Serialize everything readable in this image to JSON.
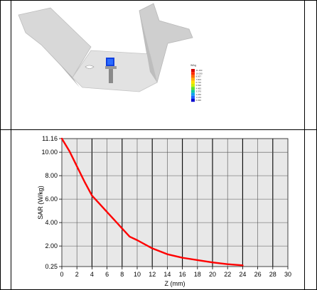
{
  "top_image": {
    "legend": {
      "title": "W/kg",
      "values": [
        "11.160",
        "10.050",
        "8.937",
        "7.823",
        "6.710",
        "5.596",
        "4.483",
        "3.370",
        "2.256",
        "1.143",
        "0.030"
      ],
      "colors": [
        "#d40000",
        "#ff2a00",
        "#ff6a00",
        "#ffb000",
        "#ffe000",
        "#c8f000",
        "#60e030",
        "#10c8a0",
        "#10a0f0",
        "#2060ff",
        "#0000d0"
      ]
    },
    "colors": {
      "phantom": "#d6d6d6",
      "phantom_shadow": "#a8a8a8",
      "probe": "#1040e0",
      "holder": "#8a8a8a"
    }
  },
  "chart_data": {
    "type": "line",
    "title": "",
    "xlabel": "Z (mm)",
    "ylabel": "SAR (W/kg)",
    "xlim": [
      0,
      30
    ],
    "ylim": [
      0.25,
      11.16
    ],
    "x_ticks": [
      "0",
      "2",
      "4",
      "6",
      "8",
      "10",
      "12",
      "14",
      "16",
      "18",
      "20",
      "22",
      "24",
      "26",
      "28",
      "30"
    ],
    "y_ticks": [
      {
        "label": "11.16",
        "value": 11.16
      },
      {
        "label": "10.00",
        "value": 10.0
      },
      {
        "label": "8.00",
        "value": 8.0
      },
      {
        "label": "6.00",
        "value": 6.0
      },
      {
        "label": "4.00",
        "value": 4.0
      },
      {
        "label": "2.00",
        "value": 2.0
      },
      {
        "label": "0.25",
        "value": 0.25
      }
    ],
    "grid": true,
    "background": "#e8e8e8",
    "series": [
      {
        "color": "#ff0000",
        "x": [
          0,
          1,
          2,
          3,
          4,
          5,
          6,
          7,
          8,
          9,
          10,
          12,
          14,
          16,
          18,
          20,
          22,
          24
        ],
        "y": [
          11.16,
          10.1,
          8.8,
          7.5,
          6.3,
          5.6,
          4.9,
          4.2,
          3.5,
          2.8,
          2.5,
          1.8,
          1.3,
          1.0,
          0.8,
          0.6,
          0.45,
          0.35
        ]
      }
    ]
  }
}
